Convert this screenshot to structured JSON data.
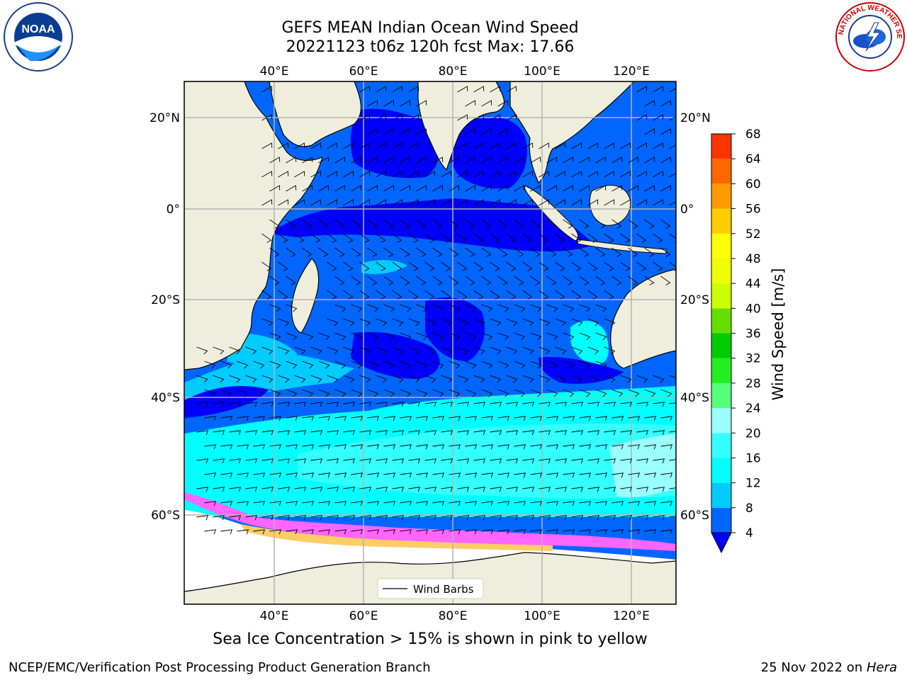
{
  "header": {
    "title_line1": "GEFS MEAN Indian Ocean Wind Speed",
    "title_line2": "20221123 t06z 120h fcst   Max: 17.66"
  },
  "logos": {
    "noaa_text": "NOAA",
    "nws_text": "NATIONAL WEATHER SERVICE"
  },
  "map": {
    "top_lon_labels": [
      "40°E",
      "60°E",
      "80°E",
      "100°E",
      "120°E"
    ],
    "bottom_lon_labels": [
      "40°E",
      "60°E",
      "80°E",
      "100°E",
      "120°E"
    ],
    "left_lat_labels": [
      "20°N",
      "0°",
      "20°S",
      "40°S",
      "60°S"
    ],
    "right_lat_labels": [
      "20°N",
      "0°",
      "20°S",
      "40°S",
      "60°S"
    ],
    "legend_label": "Wind Barbs"
  },
  "colorbar": {
    "label": "Wind Speed [m/s]",
    "ticks": [
      "4",
      "8",
      "12",
      "16",
      "20",
      "24",
      "28",
      "32",
      "36",
      "40",
      "44",
      "48",
      "52",
      "56",
      "60",
      "64",
      "68"
    ],
    "colors": [
      "#0066ff",
      "#00ccff",
      "#00ffff",
      "#33ffff",
      "#99ffff",
      "#55ff77",
      "#22ee22",
      "#00cc00",
      "#66dd00",
      "#ccff00",
      "#eeff00",
      "#ffff00",
      "#ffcc00",
      "#ff9900",
      "#ff6600",
      "#ff3300",
      "#ff0000"
    ],
    "under_color": "#0000ff"
  },
  "caption": "Sea Ice Concentration > 15% is shown in pink to yellow",
  "footer": {
    "left": "NCEP/EMC/Verification Post Processing Product Generation Branch",
    "right_prefix": "25 Nov 2022 on ",
    "right_system": "Hera"
  }
}
